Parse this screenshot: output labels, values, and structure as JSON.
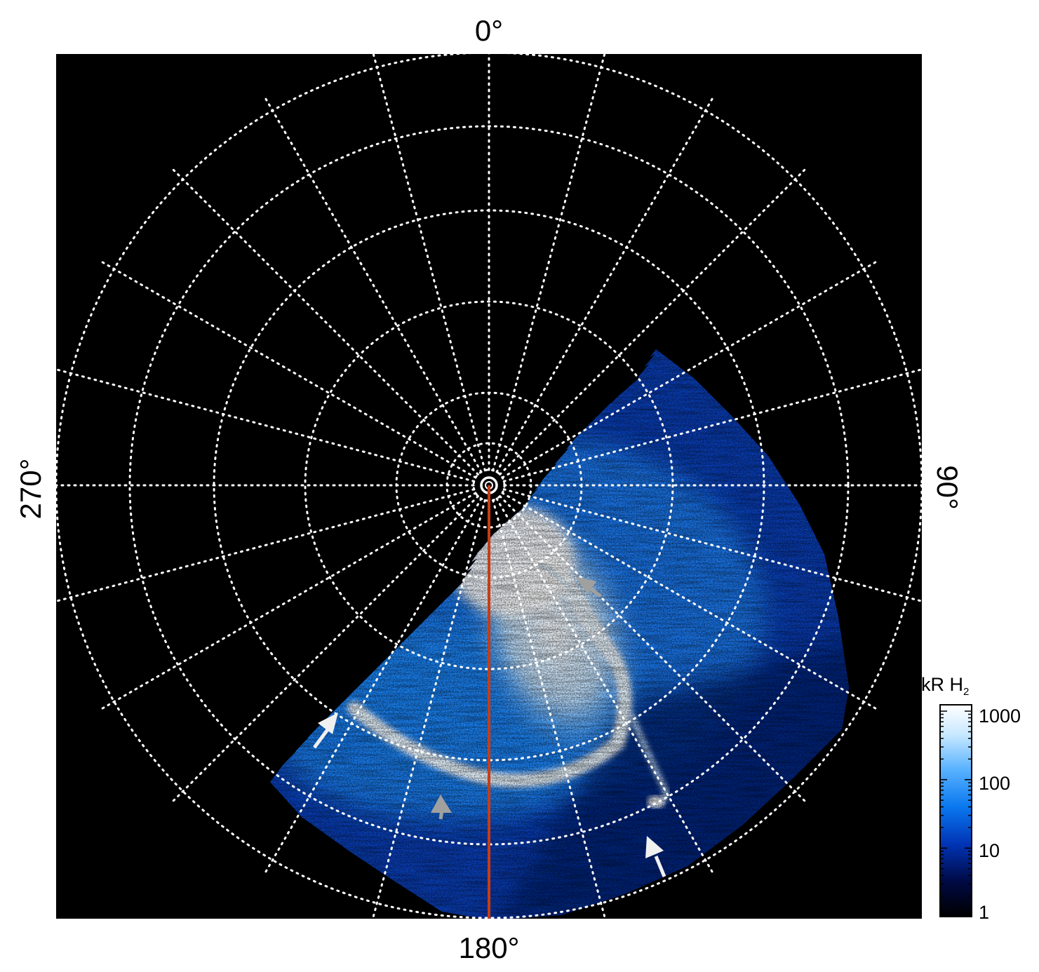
{
  "labels": {
    "top": "0°",
    "bottom": "180°",
    "left": "270°",
    "right": "90°"
  },
  "colorbar": {
    "title": "kR H",
    "title_subscript": "2",
    "ticks": [
      "1000",
      "100",
      "10",
      "1"
    ],
    "colors": [
      "#000000",
      "#000a46",
      "#0033b4",
      "#0a78f0",
      "#5cb4ff",
      "#c8e8ff",
      "#ffffff"
    ]
  },
  "colors": {
    "background": "#000000",
    "grid": "#ffffff",
    "meridian": "#c83c14",
    "arrow_white": "#f0f0f0",
    "arrow_grey": "#a0a0a0"
  }
}
